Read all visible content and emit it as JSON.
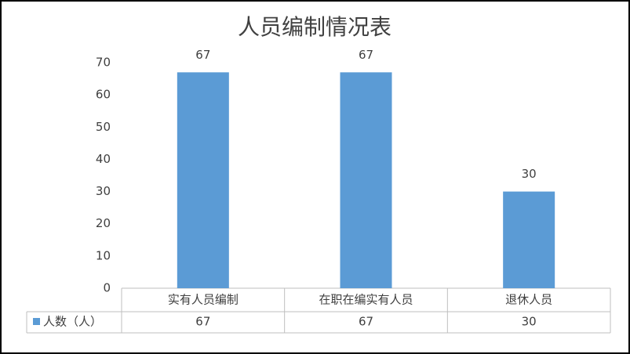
{
  "chart_data": {
    "type": "bar",
    "title": "人员编制情况表",
    "categories": [
      "实有人员编制",
      "在职在编实有人员",
      "退休人员"
    ],
    "series": [
      {
        "name": "人数（人）",
        "color": "#5b9bd5",
        "values": [
          67,
          67,
          30
        ]
      }
    ],
    "ylim": [
      0,
      70
    ],
    "yticks": [
      0,
      10,
      20,
      30,
      40,
      50,
      60,
      70
    ],
    "data_labels": true,
    "data_table": true
  }
}
